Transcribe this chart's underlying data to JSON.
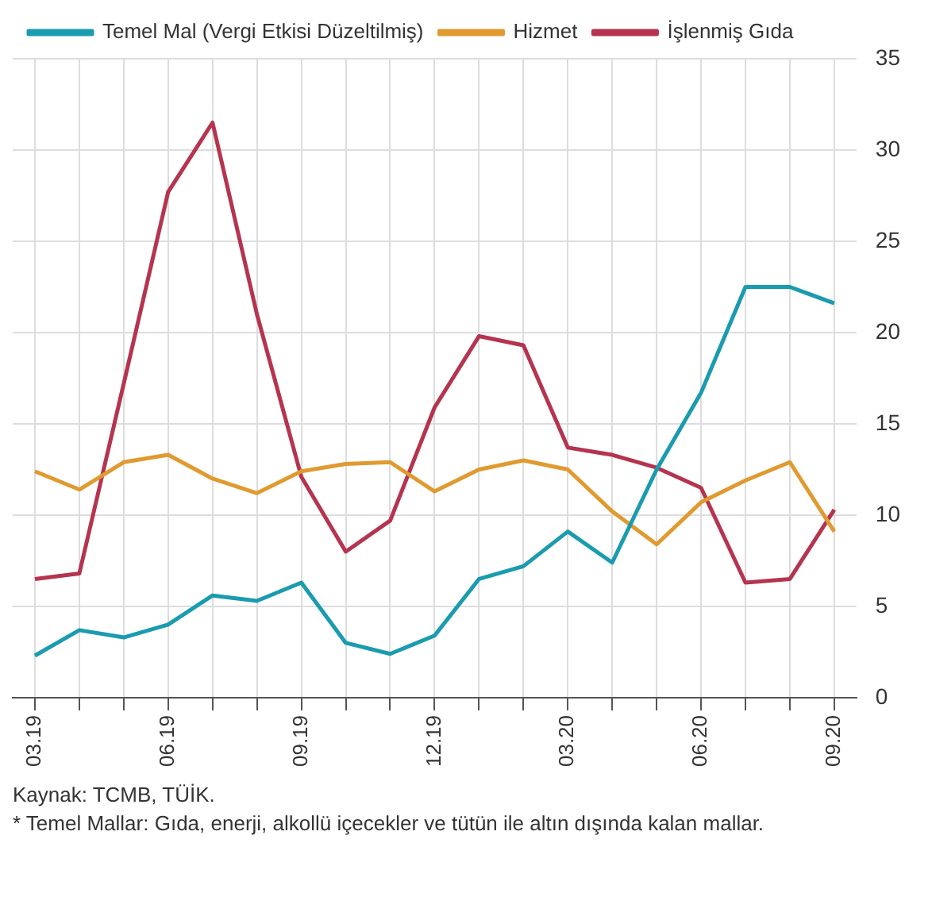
{
  "chart_data": {
    "type": "line",
    "categories": [
      "03.19",
      null,
      null,
      "06.19",
      null,
      null,
      "09.19",
      null,
      null,
      "12.19",
      null,
      null,
      "03.20",
      null,
      null,
      "06.20",
      null,
      null,
      "09.20"
    ],
    "series": [
      {
        "name": "Temel Mal (Vergi Etkisi Düzeltilmiş)",
        "color": "#1a9bb0",
        "values": [
          2.3,
          3.7,
          3.3,
          4.0,
          5.6,
          5.3,
          6.3,
          3.0,
          2.4,
          3.4,
          6.5,
          7.2,
          9.1,
          7.4,
          12.5,
          16.7,
          22.5,
          22.5,
          21.6
        ]
      },
      {
        "name": "Hizmet",
        "color": "#e09a30",
        "values": [
          12.4,
          11.4,
          12.9,
          13.3,
          12.0,
          11.2,
          12.4,
          12.8,
          12.9,
          11.3,
          12.5,
          13.0,
          12.5,
          10.2,
          8.4,
          10.7,
          11.9,
          12.9,
          9.1
        ]
      },
      {
        "name": "İşlenmiş Gıda",
        "color": "#b5344f",
        "values": [
          6.5,
          6.8,
          17.2,
          27.7,
          31.5,
          21.0,
          12.1,
          8.0,
          9.7,
          15.9,
          19.8,
          19.3,
          13.7,
          13.3,
          12.6,
          11.5,
          6.3,
          6.5,
          10.3
        ]
      }
    ],
    "ylim": [
      0,
      35
    ],
    "yticks": [
      0,
      5,
      10,
      15,
      20,
      25,
      30,
      35
    ],
    "grid": true,
    "legend": "top",
    "marker": "none",
    "line_style": "solid",
    "annotations": [
      "Kaynak: TCMB, TÜİK.",
      "* Temel Mallar: Gıda, enerji, alkollü içecekler ve tütün ile altın dışında kalan mallar."
    ]
  }
}
